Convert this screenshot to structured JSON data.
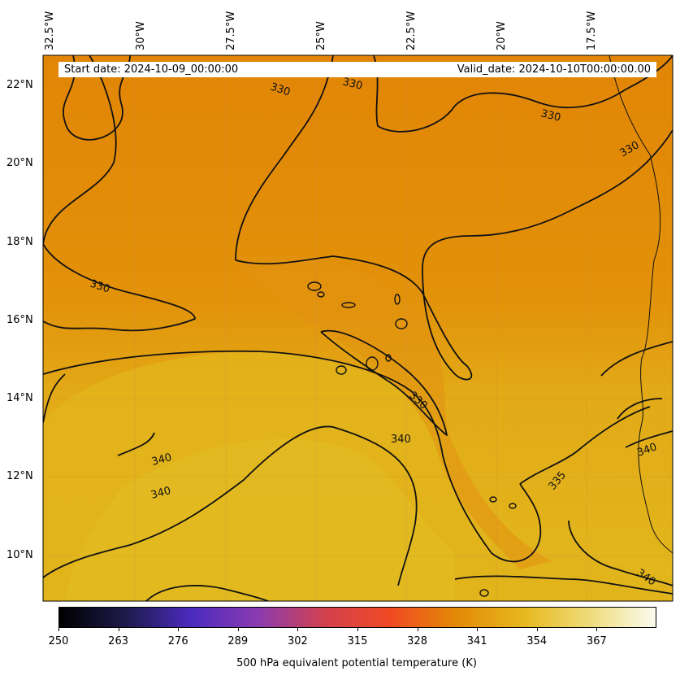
{
  "header": {
    "start_date": "Start date: 2024-10-09_00:00:00",
    "valid_date": "Valid_date: 2024-10-10T00:00:00.00"
  },
  "longitude_labels": [
    "32.5°W",
    "30°W",
    "27.5°W",
    "25°W",
    "22.5°W",
    "20°W",
    "17.5°W"
  ],
  "latitude_labels": [
    "22°N",
    "20°N",
    "18°N",
    "16°N",
    "14°N",
    "12°N",
    "10°N"
  ],
  "contour_labels": [
    "330",
    "330",
    "330",
    "330",
    "330",
    "330",
    "340",
    "340",
    "340",
    "335",
    "340",
    "340"
  ],
  "colorbar": {
    "label": "500 hPa equivalent potential temperature (K)",
    "ticks": [
      "250",
      "263",
      "276",
      "289",
      "302",
      "315",
      "328",
      "341",
      "354",
      "367"
    ],
    "colors": [
      "#000000",
      "#1e1b4b",
      "#4c2bbf",
      "#8a3bb0",
      "#d1414f",
      "#f04a23",
      "#e38a06",
      "#e7b81e",
      "#eedc7a",
      "#fbfbef"
    ]
  },
  "map": {
    "background_colors": [
      "#e38a06",
      "#e2b71d"
    ]
  }
}
